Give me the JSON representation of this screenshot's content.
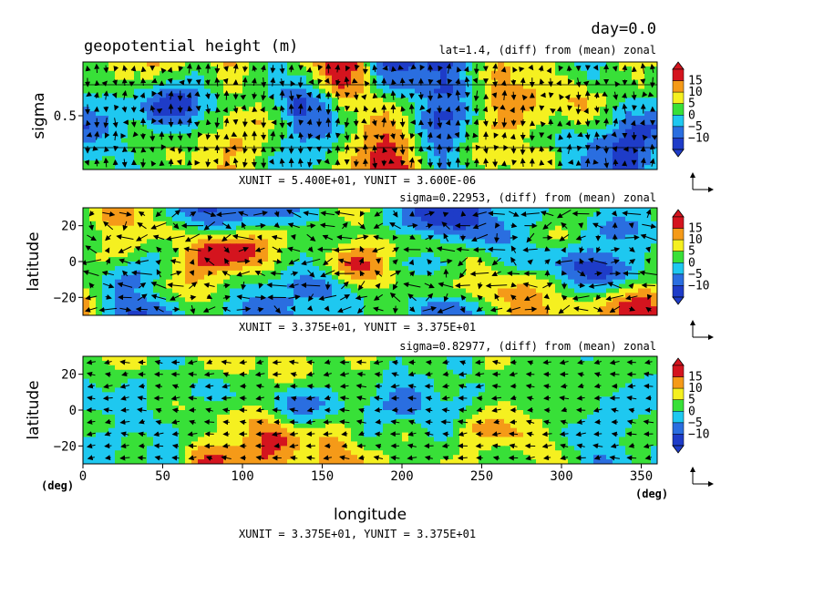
{
  "chart_data": {
    "type": "heatmap",
    "title": "geopotential height (m)",
    "time_label": "day=0.0",
    "colorbar": {
      "levels": [
        "15",
        "10",
        "5",
        "0",
        "−5",
        "−10"
      ],
      "colors": [
        "#d4141e",
        "#f59a18",
        "#f5f020",
        "#38e038",
        "#1ec8f0",
        "#2a6ee0",
        "#1e3cc8"
      ]
    },
    "panels": [
      {
        "id": "sigma-section",
        "subtitle": "lat=1.4, (diff) from (mean) zonal",
        "ylabel": "sigma",
        "yticks": [
          "0.5"
        ],
        "unit_text": "XUNIT = 5.400E+01, YUNIT = 3.600E-06",
        "xlim": [
          0,
          360
        ],
        "ylim": [
          1,
          0
        ]
      },
      {
        "id": "upper-level",
        "subtitle": "sigma=0.22953, (diff) from (mean) zonal",
        "ylabel": "latitude",
        "yticks": [
          "20",
          "0",
          "−20"
        ],
        "unit_text": "XUNIT = 3.375E+01, YUNIT = 3.375E+01",
        "xlim": [
          0,
          360
        ],
        "ylim": [
          -30,
          30
        ]
      },
      {
        "id": "lower-level",
        "subtitle": "sigma=0.82977, (diff) from (mean) zonal",
        "ylabel": "latitude",
        "yticks": [
          "20",
          "0",
          "−20"
        ],
        "unit_text": "XUNIT = 3.375E+01, YUNIT = 3.375E+01",
        "xlim": [
          0,
          360
        ],
        "ylim": [
          -30,
          30
        ]
      }
    ],
    "xlabel": "longitude",
    "xticks": [
      "0",
      "50",
      "100",
      "150",
      "200",
      "250",
      "300",
      "350"
    ],
    "x_unit_label": "(deg)",
    "y_unit_label": "(deg)"
  }
}
